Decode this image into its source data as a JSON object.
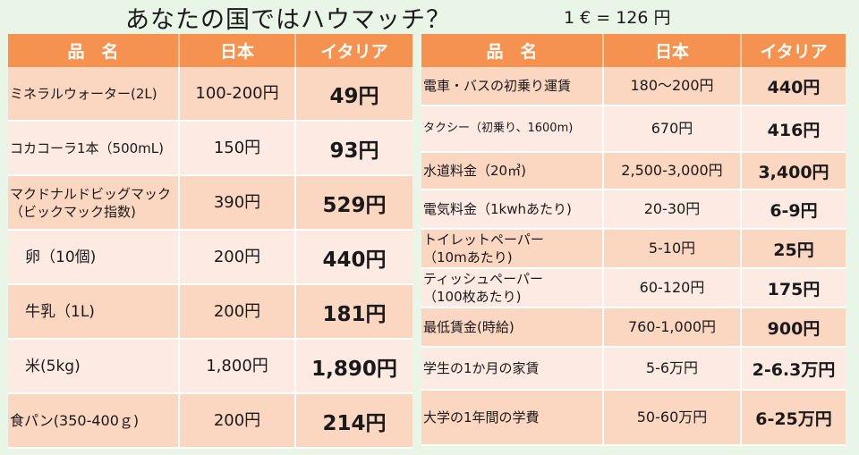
{
  "title": "あなたの国ではハウマッチ？",
  "rate": "1 € = 126 円",
  "left": {
    "headers": [
      "品　名",
      "日本",
      "イタリア"
    ],
    "rows": [
      {
        "name": "ミネラルウォーター(2L)",
        "japan": "100‐200円",
        "italy": "49円"
      },
      {
        "name": "コカコーラ1本（500mL)",
        "japan": "150円",
        "italy": "93円"
      },
      {
        "name": "マクドナルドビッグマック\n（ビックマック指数)",
        "japan": "390円",
        "italy": "529円"
      },
      {
        "name": "　卵（10個)",
        "japan": "200円",
        "italy": "440円"
      },
      {
        "name": "　牛乳（1L)",
        "japan": "200円",
        "italy": "181円"
      },
      {
        "name": "　米(5kg)",
        "japan": "1,800円",
        "italy": "1,890円"
      },
      {
        "name": "食パン(350-400ｇ)",
        "japan": "200円",
        "italy": "214円"
      }
    ]
  },
  "right": {
    "headers": [
      "品　名",
      "日本",
      "イタリア"
    ],
    "rows": [
      {
        "name": "電車・バスの初乗り運賃",
        "japan": "180〜200円",
        "italy": "440円"
      },
      {
        "name": "タクシー（初乗り、1600m)",
        "japan": "670円",
        "italy": "416円"
      },
      {
        "name": "水道料金（20㎥)",
        "japan": "2,500-3,000円",
        "italy": "3,400円"
      },
      {
        "name": "電気料金（1kwhあたり)",
        "japan": "20-30円",
        "italy": "6‐9円"
      },
      {
        "name": "トイレットペーパー\n（10mあたり)",
        "japan": "5-10円",
        "italy": "25円"
      },
      {
        "name": "ティッシュペーパー\n（100枚あたり)",
        "japan": "60-120円",
        "italy": "175円"
      },
      {
        "name": "最低賃金(時給)",
        "japan": "760-1,000円",
        "italy": "900円"
      },
      {
        "name": "学生の1か月の家賃",
        "japan": "5-6万円",
        "italy": "2‐6.3万円"
      },
      {
        "name": "大学の1年間の学費",
        "japan": "50-60万円",
        "italy": "6‐25万円"
      }
    ]
  }
}
